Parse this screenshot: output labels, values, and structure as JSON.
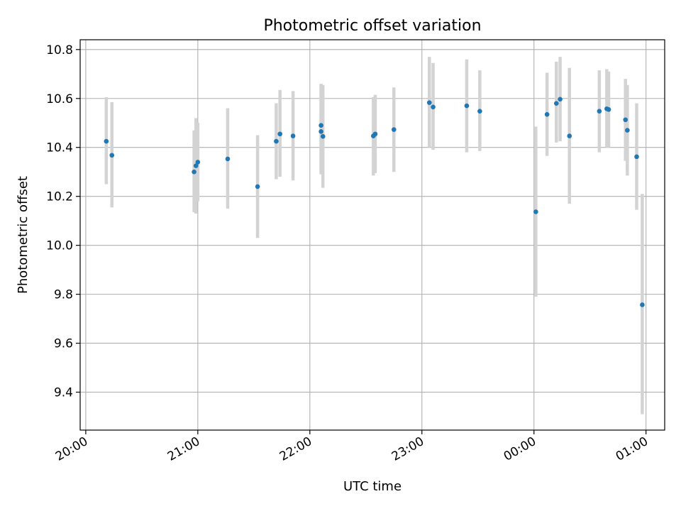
{
  "chart_data": {
    "type": "scatter",
    "title": "Photometric offset variation",
    "xlabel": "UTC time",
    "ylabel": "Photometric offset",
    "x_axis_kind": "time",
    "x_range_minutes": [
      -3,
      310
    ],
    "ylim": [
      9.245,
      10.84
    ],
    "x_ticks": [
      {
        "minutes": 0,
        "label": "20:00"
      },
      {
        "minutes": 60,
        "label": "21:00"
      },
      {
        "minutes": 120,
        "label": "22:00"
      },
      {
        "minutes": 180,
        "label": "23:00"
      },
      {
        "minutes": 240,
        "label": "00:00"
      },
      {
        "minutes": 300,
        "label": "01:00"
      }
    ],
    "y_ticks": [
      {
        "value": 9.4,
        "label": "9.4"
      },
      {
        "value": 9.6,
        "label": "9.6"
      },
      {
        "value": 9.8,
        "label": "9.8"
      },
      {
        "value": 10.0,
        "label": "10.0"
      },
      {
        "value": 10.2,
        "label": "10.2"
      },
      {
        "value": 10.4,
        "label": "10.4"
      },
      {
        "value": 10.6,
        "label": "10.6"
      },
      {
        "value": 10.8,
        "label": "10.8"
      }
    ],
    "grid": true,
    "series": [
      {
        "marker_color": "#1f77b4",
        "errorbar_color": "#d3d3d3",
        "points": [
          {
            "time": "20:11",
            "y": 10.425,
            "low": 10.25,
            "high": 10.605
          },
          {
            "time": "20:14",
            "y": 10.368,
            "low": 10.155,
            "high": 10.585
          },
          {
            "time": "20:58",
            "y": 10.3,
            "low": 10.135,
            "high": 10.47
          },
          {
            "time": "20:59",
            "y": 10.325,
            "low": 10.13,
            "high": 10.52
          },
          {
            "time": "21:00",
            "y": 10.34,
            "low": 10.18,
            "high": 10.5
          },
          {
            "time": "21:16",
            "y": 10.353,
            "low": 10.15,
            "high": 10.56
          },
          {
            "time": "21:32",
            "y": 10.24,
            "low": 10.03,
            "high": 10.45
          },
          {
            "time": "21:42",
            "y": 10.425,
            "low": 10.27,
            "high": 10.58
          },
          {
            "time": "21:44",
            "y": 10.455,
            "low": 10.28,
            "high": 10.635
          },
          {
            "time": "21:51",
            "y": 10.447,
            "low": 10.265,
            "high": 10.63
          },
          {
            "time": "22:06",
            "y": 10.49,
            "low": 10.29,
            "high": 10.66
          },
          {
            "time": "22:06",
            "y": 10.465,
            "low": 10.3,
            "high": 10.65
          },
          {
            "time": "22:07",
            "y": 10.445,
            "low": 10.235,
            "high": 10.655
          },
          {
            "time": "22:34",
            "y": 10.447,
            "low": 10.285,
            "high": 10.605
          },
          {
            "time": "22:35",
            "y": 10.455,
            "low": 10.295,
            "high": 10.615
          },
          {
            "time": "22:45",
            "y": 10.473,
            "low": 10.3,
            "high": 10.645
          },
          {
            "time": "23:04",
            "y": 10.583,
            "low": 10.4,
            "high": 10.77
          },
          {
            "time": "23:06",
            "y": 10.565,
            "low": 10.39,
            "high": 10.745
          },
          {
            "time": "23:24",
            "y": 10.57,
            "low": 10.38,
            "high": 10.76
          },
          {
            "time": "23:31",
            "y": 10.548,
            "low": 10.385,
            "high": 10.715
          },
          {
            "time": "00:01",
            "y": 10.137,
            "low": 9.79,
            "high": 10.485
          },
          {
            "time": "00:07",
            "y": 10.535,
            "low": 10.365,
            "high": 10.705
          },
          {
            "time": "00:12",
            "y": 10.58,
            "low": 10.42,
            "high": 10.75
          },
          {
            "time": "00:14",
            "y": 10.597,
            "low": 10.425,
            "high": 10.77
          },
          {
            "time": "00:19",
            "y": 10.447,
            "low": 10.17,
            "high": 10.725
          },
          {
            "time": "00:35",
            "y": 10.548,
            "low": 10.38,
            "high": 10.715
          },
          {
            "time": "00:39",
            "y": 10.558,
            "low": 10.4,
            "high": 10.72
          },
          {
            "time": "00:40",
            "y": 10.555,
            "low": 10.4,
            "high": 10.71
          },
          {
            "time": "00:49",
            "y": 10.513,
            "low": 10.345,
            "high": 10.68
          },
          {
            "time": "00:50",
            "y": 10.47,
            "low": 10.285,
            "high": 10.655
          },
          {
            "time": "00:55",
            "y": 10.362,
            "low": 10.145,
            "high": 10.58
          },
          {
            "time": "00:58",
            "y": 9.757,
            "low": 9.31,
            "high": 10.21
          }
        ]
      }
    ]
  }
}
